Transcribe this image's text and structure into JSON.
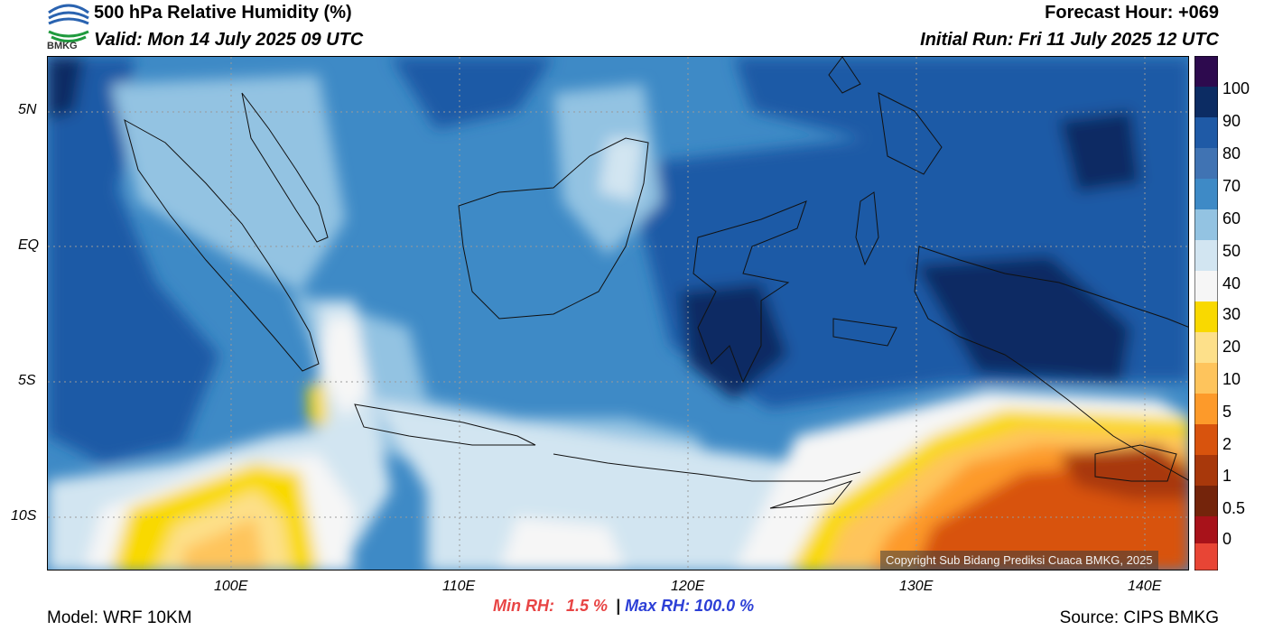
{
  "header": {
    "title": "500 hPa Relative Humidity (%)",
    "valid": "Valid: Mon 14 July 2025 09 UTC",
    "forecast_hour": "Forecast Hour: +069",
    "initial_run": "Initial Run: Fri 11 July 2025 12 UTC"
  },
  "logo": {
    "text": "BMKG",
    "icon": "bmkg-logo-icon"
  },
  "map": {
    "lat_labels": [
      "5N",
      "EQ",
      "5S",
      "10S"
    ],
    "lon_labels": [
      "100E",
      "110E",
      "120E",
      "130E",
      "140E"
    ],
    "copyright": "Copyright Sub Bidang Prediksi Cuaca BMKG, 2025"
  },
  "colorbar": {
    "labels": [
      "100",
      "90",
      "80",
      "70",
      "60",
      "50",
      "40",
      "30",
      "20",
      "10",
      "5",
      "2",
      "1",
      "0.5",
      "0"
    ],
    "colors": [
      "#2d0a4e",
      "#0c2c63",
      "#1f5aa6",
      "#3e8ac6",
      "#93c3e2",
      "#d2e5f1",
      "#f6f6f6",
      "#f9d900",
      "#fde08a",
      "#fec45c",
      "#fd9a2a",
      "#d8530d",
      "#a8380b",
      "#74240b",
      "#a8121a",
      "#c81e1e",
      "#e84535"
    ]
  },
  "stats": {
    "min_label": "Min RH:",
    "min_value": "1.5 %",
    "separator": "|",
    "max_label": "Max RH:",
    "max_value": "100.0 %"
  },
  "footer": {
    "model": "Model: WRF 10KM",
    "source": "Source: CIPS BMKG"
  }
}
